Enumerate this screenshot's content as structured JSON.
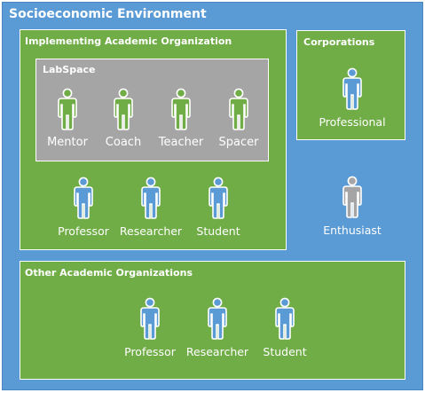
{
  "groups": {
    "environment": "Socioeconomic Environment",
    "implementing": "Implementing Academic Organization",
    "labspace": "LabSpace",
    "corporations": "Corporations",
    "other": "Other Academic Organizations"
  },
  "people": {
    "lab": [
      "Mentor",
      "Coach",
      "Teacher",
      "Spacer"
    ],
    "implementing": [
      "Professor",
      "Researcher",
      "Student"
    ],
    "corporations": "Professional",
    "unaffiliated": "Enthusiast",
    "other": [
      "Professor",
      "Researcher",
      "Student"
    ]
  },
  "colors": {
    "environment": "#5b9bd5",
    "organization": "#70ad47",
    "labspace": "#a5a5a5",
    "person_blue": "#5b9bd5",
    "person_green": "#70ad47",
    "person_gray": "#a5a5a5"
  },
  "icons": {
    "person": "person-icon"
  }
}
